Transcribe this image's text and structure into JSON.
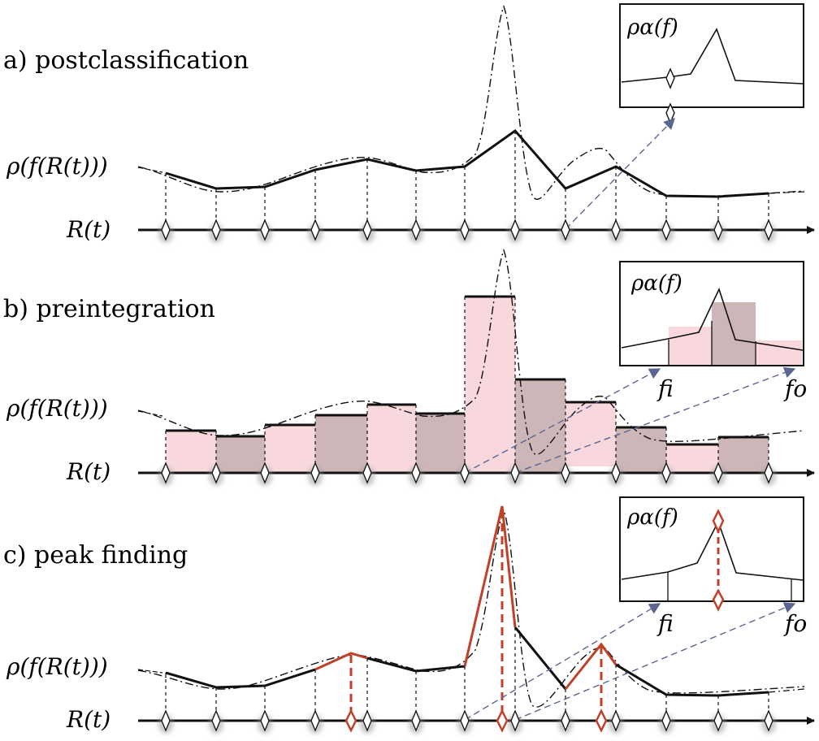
{
  "panels": [
    {
      "id": "a",
      "label": "a)  postclassification"
    },
    {
      "id": "b",
      "label": "b)  preintegration"
    },
    {
      "id": "c",
      "label": "c)  peak finding"
    }
  ],
  "curve_label": "ρ(f(R(t)))",
  "ray_label": "R(t)",
  "inset_title": "ρα(f)",
  "front_label": "fi",
  "back_label": "fo",
  "colors": {
    "line": "#111111",
    "peak": "#c0402a",
    "arrow": "#5a6691",
    "bar_light": "#f8d8dc",
    "bar_dark": "#cdb6b8"
  },
  "icons": [
    "diamond-sample-marker",
    "arrow-head"
  ]
}
